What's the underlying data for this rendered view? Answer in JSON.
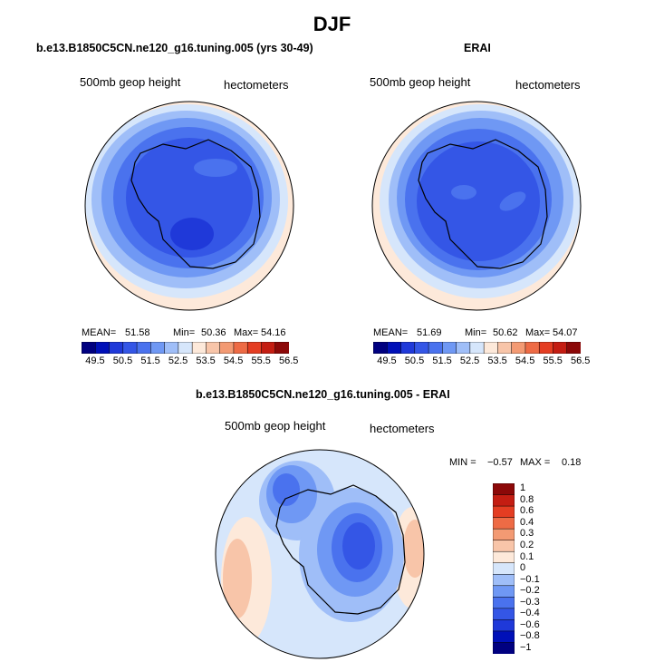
{
  "figure": {
    "title": "DJF"
  },
  "chart_data": [
    {
      "type": "heatmap",
      "projection": "south-polar-stereographic",
      "title": "b.e13.B1850C5CN.ne120_g16.tuning.005 (yrs 30-49)",
      "left_label": "500mb geop height",
      "right_label": "hectometers",
      "stats": {
        "mean_label": "MEAN=",
        "mean": "51.58",
        "min_label": "Min=",
        "min": "50.36",
        "max_label": "Max=",
        "max": "54.16"
      },
      "colorbar": {
        "colors": [
          "#000080",
          "#0010b8",
          "#1f39d9",
          "#3456e6",
          "#4a72ee",
          "#6f98f4",
          "#9fbef8",
          "#d6e6fb",
          "#fde9da",
          "#f8c5a9",
          "#f39a73",
          "#ee6b45",
          "#e43d22",
          "#c41d12",
          "#8c0808"
        ],
        "tick_labels": [
          "49.5",
          "50.5",
          "51.5",
          "52.5",
          "53.5",
          "54.5",
          "55.5",
          "56.5"
        ]
      }
    },
    {
      "type": "heatmap",
      "projection": "south-polar-stereographic",
      "title": "ERAI",
      "left_label": "500mb geop height",
      "right_label": "hectometers",
      "stats": {
        "mean_label": "MEAN=",
        "mean": "51.69",
        "min_label": "Min=",
        "min": "50.62",
        "max_label": "Max=",
        "max": "54.07"
      },
      "colorbar": {
        "colors": [
          "#000080",
          "#0010b8",
          "#1f39d9",
          "#3456e6",
          "#4a72ee",
          "#6f98f4",
          "#9fbef8",
          "#d6e6fb",
          "#fde9da",
          "#f8c5a9",
          "#f39a73",
          "#ee6b45",
          "#e43d22",
          "#c41d12",
          "#8c0808"
        ],
        "tick_labels": [
          "49.5",
          "50.5",
          "51.5",
          "52.5",
          "53.5",
          "54.5",
          "55.5",
          "56.5"
        ]
      }
    },
    {
      "type": "heatmap",
      "projection": "south-polar-stereographic",
      "title": "b.e13.B1850C5CN.ne120_g16.tuning.005 - ERAI",
      "left_label": "500mb geop height",
      "right_label": "hectometers",
      "stats": {
        "min_label": "MIN =",
        "min": "−0.57",
        "max_label": "MAX =",
        "max": "0.18"
      },
      "colorbar": {
        "orientation": "vertical",
        "colors": [
          "#8c0808",
          "#c41d12",
          "#e43d22",
          "#ee6b45",
          "#f39a73",
          "#f8c5a9",
          "#fde9da",
          "#d6e6fb",
          "#9fbef8",
          "#6f98f4",
          "#4a72ee",
          "#3456e6",
          "#1f39d9",
          "#0010b8",
          "#000080"
        ],
        "levels": [
          1,
          0.8,
          0.6,
          0.4,
          0.3,
          0.2,
          0.1,
          0,
          -0.1,
          -0.2,
          -0.3,
          -0.4,
          -0.6,
          -0.8,
          -1
        ],
        "tick_labels": [
          "1",
          "0.8",
          "0.6",
          "0.4",
          "0.3",
          "0.2",
          "0.1",
          "0",
          "−0.1",
          "−0.2",
          "−0.3",
          "−0.4",
          "−0.6",
          "−0.8",
          "−1"
        ]
      }
    }
  ]
}
